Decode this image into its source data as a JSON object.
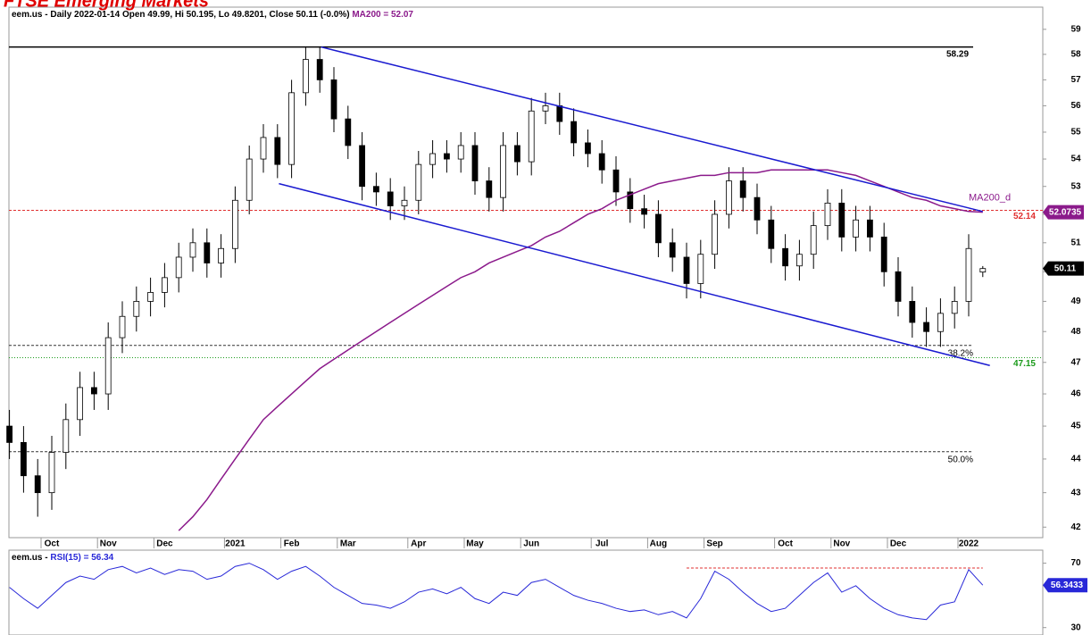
{
  "chart_data": [
    {
      "type": "candlestick",
      "heading": "FTSE Emerging Markets",
      "title": "eem.us - Daily 2022-01-14 Open 49.99, Hi 50.195, Lo 49.8201, Close 50.11 (-0.0%)",
      "ma_label": "MA200 = 52.07",
      "log": true,
      "categories": [
        null,
        null,
        null,
        "Oct",
        null,
        null,
        null,
        "Nov",
        null,
        null,
        null,
        "Dec",
        null,
        null,
        null,
        null,
        "2021",
        null,
        null,
        null,
        "Feb",
        null,
        null,
        null,
        "Mar",
        null,
        null,
        null,
        null,
        "Apr",
        null,
        null,
        null,
        "May",
        null,
        null,
        null,
        "Jun",
        null,
        null,
        null,
        null,
        "Jul",
        null,
        null,
        null,
        "Aug",
        null,
        null,
        null,
        "Sep",
        null,
        null,
        null,
        null,
        "Oct",
        null,
        null,
        null,
        "Nov",
        null,
        null,
        null,
        "Dec",
        null,
        null,
        null,
        null,
        "2022",
        null
      ],
      "open": [
        45.0,
        44.5,
        43.5,
        43.0,
        44.2,
        45.2,
        46.2,
        46.0,
        47.8,
        48.5,
        49.0,
        49.3,
        49.8,
        50.5,
        51.0,
        50.3,
        50.8,
        52.5,
        54.0,
        54.8,
        53.8,
        56.5,
        57.8,
        57.0,
        55.5,
        54.5,
        53.0,
        52.8,
        52.3,
        52.5,
        53.8,
        54.2,
        54.0,
        54.5,
        53.2,
        52.6,
        54.5,
        53.9,
        55.8,
        56.0,
        55.4,
        54.6,
        54.2,
        53.6,
        52.8,
        52.2,
        52.0,
        51.0,
        50.5,
        49.6,
        50.6,
        52.0,
        53.2,
        52.6,
        51.8,
        50.8,
        50.2,
        50.6,
        51.6,
        52.4,
        51.2,
        51.8,
        51.2,
        50.0,
        49.0,
        48.3,
        48.0,
        48.6,
        49.0,
        49.99
      ],
      "high": [
        45.5,
        45.0,
        44.0,
        44.7,
        45.7,
        46.7,
        46.7,
        48.3,
        49.0,
        49.5,
        49.8,
        50.3,
        51.0,
        51.5,
        51.5,
        51.3,
        53.0,
        54.5,
        55.3,
        55.3,
        57.0,
        58.3,
        58.3,
        57.5,
        56.0,
        55.0,
        53.5,
        53.3,
        53.0,
        54.3,
        54.7,
        54.7,
        55.0,
        55.0,
        53.7,
        55.0,
        55.0,
        56.3,
        56.5,
        56.5,
        55.9,
        55.1,
        54.7,
        54.1,
        53.3,
        52.7,
        52.5,
        51.5,
        51.0,
        51.1,
        52.5,
        53.7,
        53.7,
        53.1,
        52.3,
        51.3,
        51.1,
        52.1,
        52.9,
        52.9,
        52.3,
        52.3,
        51.7,
        50.5,
        49.5,
        48.8,
        49.1,
        49.5,
        51.3,
        50.195
      ],
      "low": [
        44.0,
        43.0,
        42.3,
        42.5,
        43.7,
        44.7,
        45.5,
        45.5,
        47.3,
        48.0,
        48.5,
        48.8,
        49.3,
        50.0,
        49.8,
        49.8,
        50.3,
        52.0,
        53.5,
        53.3,
        53.3,
        56.0,
        56.5,
        55.0,
        54.0,
        52.5,
        52.3,
        51.8,
        51.8,
        52.0,
        53.3,
        53.5,
        53.5,
        52.7,
        52.1,
        52.1,
        53.4,
        53.4,
        55.3,
        54.9,
        54.1,
        53.7,
        53.1,
        52.3,
        51.7,
        51.5,
        50.5,
        50.0,
        49.1,
        49.1,
        50.1,
        51.5,
        52.1,
        51.3,
        50.3,
        49.7,
        49.7,
        50.1,
        51.1,
        50.7,
        50.7,
        50.7,
        49.5,
        48.5,
        47.8,
        47.5,
        47.5,
        48.1,
        48.5,
        49.8201
      ],
      "close": [
        44.5,
        43.5,
        43.0,
        44.2,
        45.2,
        46.2,
        46.0,
        47.8,
        48.5,
        49.0,
        49.3,
        49.8,
        50.5,
        51.0,
        50.3,
        50.8,
        52.5,
        54.0,
        54.8,
        53.8,
        56.5,
        57.8,
        57.0,
        55.5,
        54.5,
        53.0,
        52.8,
        52.3,
        52.5,
        53.8,
        54.2,
        54.0,
        54.5,
        53.2,
        52.6,
        54.5,
        53.9,
        55.8,
        56.0,
        55.4,
        54.6,
        54.2,
        53.6,
        52.8,
        52.2,
        52.0,
        51.0,
        50.5,
        49.6,
        50.6,
        52.0,
        53.2,
        52.6,
        51.8,
        50.8,
        50.2,
        50.6,
        51.6,
        52.4,
        51.2,
        51.8,
        51.2,
        50.0,
        49.0,
        48.3,
        48.0,
        48.6,
        49.0,
        50.8,
        50.11
      ],
      "ma": {
        "name": "MA200_d",
        "color": "#8b1a8b",
        "values": [
          null,
          null,
          null,
          null,
          null,
          null,
          null,
          null,
          null,
          null,
          null,
          null,
          41.9,
          42.3,
          42.8,
          43.4,
          44.0,
          44.6,
          45.2,
          45.6,
          46.0,
          46.4,
          46.8,
          47.1,
          47.4,
          47.7,
          48.0,
          48.3,
          48.6,
          48.9,
          49.2,
          49.5,
          49.8,
          50.0,
          50.3,
          50.5,
          50.7,
          50.9,
          51.2,
          51.4,
          51.7,
          52.0,
          52.2,
          52.5,
          52.7,
          52.9,
          53.1,
          53.2,
          53.3,
          53.4,
          53.4,
          53.5,
          53.5,
          53.5,
          53.6,
          53.6,
          53.6,
          53.6,
          53.6,
          53.5,
          53.4,
          53.2,
          53.0,
          52.8,
          52.6,
          52.5,
          52.3,
          52.2,
          52.1,
          52.0735
        ]
      },
      "levels": [
        {
          "value": 58.29,
          "color": "#000000",
          "style": "solid"
        },
        {
          "value": 52.14,
          "color": "#e03030",
          "style": "dashed"
        },
        {
          "value": 47.15,
          "color": "#1a9a1a",
          "style": "dotted"
        }
      ],
      "fib_levels": {
        "values": [
          47.55,
          44.22
        ],
        "value_labels": [
          "38.2%",
          "50.0%"
        ]
      },
      "trendlines": [
        {
          "from": [
            22.1,
            58.29
          ],
          "to": [
            69,
            52.1
          ],
          "color": "#1a1ad0"
        },
        {
          "from": [
            19.1,
            53.1
          ],
          "to": [
            69.5,
            46.9
          ],
          "color": "#1a1ad0"
        }
      ],
      "ylim": [
        41.7,
        59.9
      ],
      "yticks": [
        42,
        43,
        44,
        45,
        46,
        47,
        48,
        49,
        50,
        51,
        52,
        53,
        54,
        55,
        56,
        57,
        58,
        59
      ]
    },
    {
      "type": "line",
      "title_prefix": "eem.us - ",
      "title": "RSI(15) = 56.34",
      "color": "#2828d8",
      "values": [
        55,
        48,
        42,
        50,
        58,
        62,
        60,
        66,
        68,
        64,
        67,
        63,
        66,
        65,
        60,
        62,
        68,
        70,
        66,
        60,
        65,
        68,
        62,
        55,
        50,
        45,
        44,
        42,
        46,
        52,
        54,
        51,
        55,
        48,
        45,
        52,
        50,
        58,
        60,
        55,
        50,
        47,
        45,
        42,
        40,
        41,
        38,
        40,
        36,
        48,
        65,
        60,
        52,
        45,
        40,
        42,
        50,
        58,
        64,
        52,
        56,
        48,
        42,
        38,
        36,
        35,
        44,
        46,
        66,
        56.3433
      ],
      "resistance": {
        "value": 67,
        "from": 48,
        "to": 69
      },
      "ylim": [
        25.4,
        78.1
      ],
      "yticks": [
        30,
        70
      ]
    }
  ]
}
